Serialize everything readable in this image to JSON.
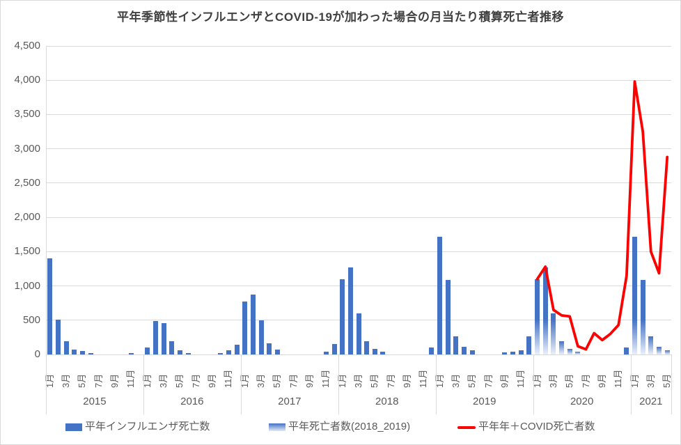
{
  "chart_data": {
    "type": "bar+line",
    "title": "平年季節性インフルエンザとCOVID-19が加わった場合の月当たり積算死亡者推移",
    "ylim": [
      0,
      4500
    ],
    "y_tick_step": 500,
    "y_tick_labels": [
      "0",
      "500",
      "1,000",
      "1,500",
      "2,000",
      "2,500",
      "3,000",
      "3,500",
      "4,000",
      "4,500"
    ],
    "month_tick_labels": [
      "1月",
      "3月",
      "5月",
      "7月",
      "9月",
      "11月"
    ],
    "years": [
      "2015",
      "2016",
      "2017",
      "2018",
      "2019",
      "2020",
      "2021"
    ],
    "grid_color": "#D9D9D9",
    "axis_text_color": "#595959",
    "legend_position": "bottom",
    "series": [
      {
        "name": "平年インフルエンザ死亡数",
        "type": "bar",
        "style": "solid",
        "color": "#4472C4",
        "data": {
          "2015": [
            1400,
            510,
            195,
            75,
            50,
            25,
            0,
            0,
            0,
            0,
            25,
            0
          ],
          "2016": [
            100,
            490,
            460,
            190,
            60,
            25,
            0,
            0,
            0,
            25,
            65,
            140
          ],
          "2017": [
            775,
            870,
            500,
            160,
            70,
            0,
            0,
            0,
            0,
            0,
            45,
            155
          ],
          "2018": [
            1100,
            1270,
            595,
            195,
            80,
            40,
            0,
            0,
            0,
            0,
            0,
            100
          ],
          "2019": [
            1720,
            1090,
            265,
            110,
            60,
            0,
            0,
            0,
            35,
            45,
            60,
            265
          ],
          "2020": [
            0,
            0,
            0,
            0,
            0,
            0,
            0,
            0,
            0,
            0,
            0,
            105
          ],
          "2021": [
            0,
            0,
            0,
            0,
            0
          ]
        }
      },
      {
        "name": "平年死亡者数(2018_2019)",
        "type": "bar",
        "style": "gradient",
        "color_top": "#4472C4",
        "color_bottom": "#EAF0FA",
        "data": {
          "2020": [
            1100,
            1270,
            595,
            195,
            80,
            40,
            0,
            0,
            0,
            0,
            0,
            0
          ],
          "2021": [
            1720,
            1090,
            265,
            110,
            60
          ]
        }
      },
      {
        "name": "平年年＋COVID死亡者数",
        "type": "line",
        "color": "#FF0000",
        "data": {
          "2020": [
            1100,
            1280,
            650,
            570,
            555,
            120,
            75,
            310,
            210,
            300,
            430,
            1150
          ],
          "2021": [
            3980,
            3250,
            1500,
            1185,
            2880
          ]
        }
      }
    ]
  }
}
